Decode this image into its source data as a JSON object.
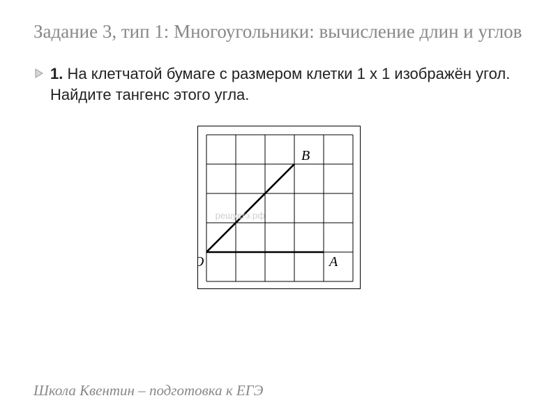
{
  "title": "Задание 3, тип 1: Многоугольники: вычисление длин и углов",
  "problem": {
    "number": "1.",
    "text": "На клетчатой бумаге с размером клетки 1 х 1 изображён угол. Найдите тангенс этого угла."
  },
  "figure": {
    "grid": {
      "cols": 5,
      "rows": 5,
      "cell": 42,
      "margin": 12
    },
    "stroke_color": "#000000",
    "grid_line_width": 1,
    "angle_line_width": 2.6,
    "watermark": "решуегэ.рф",
    "labels": {
      "O": "O",
      "A": "A",
      "B": "B"
    },
    "points_grid": {
      "O": [
        0,
        4
      ],
      "A": [
        4,
        4
      ],
      "B": [
        3,
        1
      ]
    }
  },
  "footer": "Школа Квентин – подготовка к ЕГЭ",
  "colors": {
    "title": "#888888",
    "text": "#222222",
    "footer": "#888888",
    "bullet_fill": "#d6d6d6",
    "bullet_stroke": "#9a9a9a"
  }
}
